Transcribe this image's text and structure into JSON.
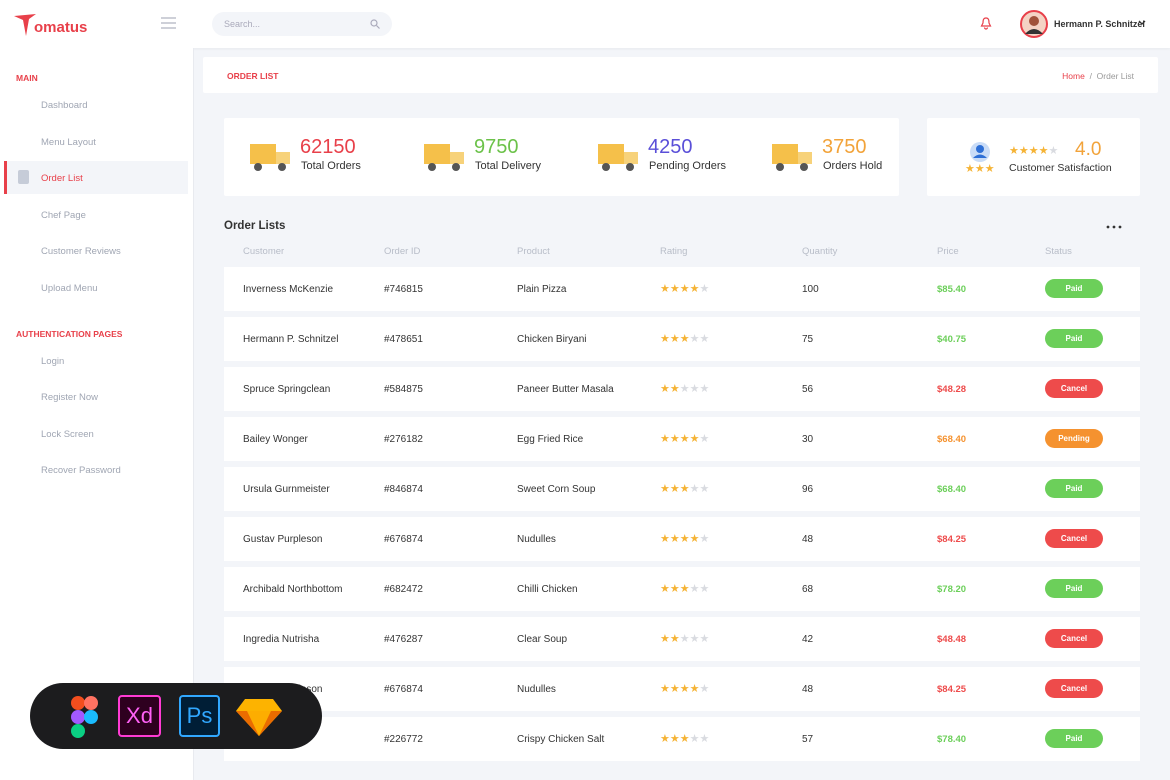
{
  "brand": "omatus",
  "search_placeholder": "Search...",
  "user": "Hermann P. Schnitzel",
  "sidebar": {
    "sections": [
      {
        "title": "MAIN",
        "items": [
          "Dashboard",
          "Menu Layout",
          "Order List",
          "Chef Page",
          "Customer Reviews",
          "Upload Menu"
        ]
      },
      {
        "title": "AUTHENTICATION PAGES",
        "items": [
          "Login",
          "Register Now",
          "Lock Screen",
          "Recover Password"
        ]
      }
    ]
  },
  "page_header": {
    "title": "ORDER LIST",
    "breadcrumb": [
      "Home",
      "/",
      "Order List"
    ]
  },
  "stats": [
    {
      "value": 62150,
      "label": "Total Orders",
      "color": "#e8404a"
    },
    {
      "value": 9750,
      "label": "Total Delivery",
      "color": "#6cc24a"
    },
    {
      "value": 4250,
      "label": "Pending Orders",
      "color": "#5a4fd8"
    },
    {
      "value": 3750,
      "label": "Orders Hold",
      "color": "#f2a33a"
    }
  ],
  "satisfaction": {
    "rating": {
      "value": 4,
      "label": "4.0"
    },
    "label": "Customer Satisfaction"
  },
  "table": {
    "title": "Order Lists",
    "columns": [
      "Customer",
      "Order ID",
      "Product",
      "Rating",
      "Quantity",
      "Price",
      "Status"
    ],
    "rows": [
      {
        "customer": "Inverness McKenzie",
        "order_id": "#746815",
        "product": "Plain Pizza",
        "rating": 4,
        "quantity": 100,
        "price": "$85.40",
        "status": "Paid",
        "color": "#6ccf5a"
      },
      {
        "customer": "Hermann P. Schnitzel",
        "order_id": "#478651",
        "product": "Chicken Biryani",
        "rating": 3,
        "quantity": 75,
        "price": "$40.75",
        "status": "Paid",
        "color": "#6ccf5a"
      },
      {
        "customer": "Spruce Springclean",
        "order_id": "#584875",
        "product": "Paneer Butter Masala",
        "rating": 2,
        "quantity": 56,
        "price": "$48.28",
        "status": "Cancel",
        "color": "#ee4b4b"
      },
      {
        "customer": "Bailey Wonger",
        "order_id": "#276182",
        "product": "Egg Fried Rice",
        "rating": 4,
        "quantity": 30,
        "price": "$68.40",
        "status": "Pending",
        "color": "#f5922f"
      },
      {
        "customer": "Ursula Gurnmeister",
        "order_id": "#846874",
        "product": "Sweet Corn Soup",
        "rating": 3,
        "quantity": 96,
        "price": "$68.40",
        "status": "Paid",
        "color": "#6ccf5a"
      },
      {
        "customer": "Gustav Purpleson",
        "order_id": "#676874",
        "product": "Nudulles",
        "rating": 4,
        "quantity": 48,
        "price": "$84.25",
        "status": "Cancel",
        "color": "#ee4b4b"
      },
      {
        "customer": "Archibald Northbottom",
        "order_id": "#682472",
        "product": "Chilli Chicken",
        "rating": 3,
        "quantity": 68,
        "price": "$78.20",
        "status": "Paid",
        "color": "#6ccf5a"
      },
      {
        "customer": "Ingredia Nutrisha",
        "order_id": "#476287",
        "product": "Clear Soup",
        "rating": 2,
        "quantity": 42,
        "price": "$48.48",
        "status": "Cancel",
        "color": "#ee4b4b"
      },
      {
        "customer": "Gustav Purpleson",
        "order_id": "#676874",
        "product": "Nudulles",
        "rating": 4,
        "quantity": 48,
        "price": "$84.25",
        "status": "Cancel",
        "color": "#ee4b4b"
      },
      {
        "customer": null,
        "order_id": "#226772",
        "product": "Crispy Chicken Salt",
        "rating": 3,
        "quantity": 57,
        "price": "$78.40",
        "status": "Paid",
        "color": "#6ccf5a"
      }
    ]
  },
  "tools": [
    "Xd",
    "Ps"
  ]
}
